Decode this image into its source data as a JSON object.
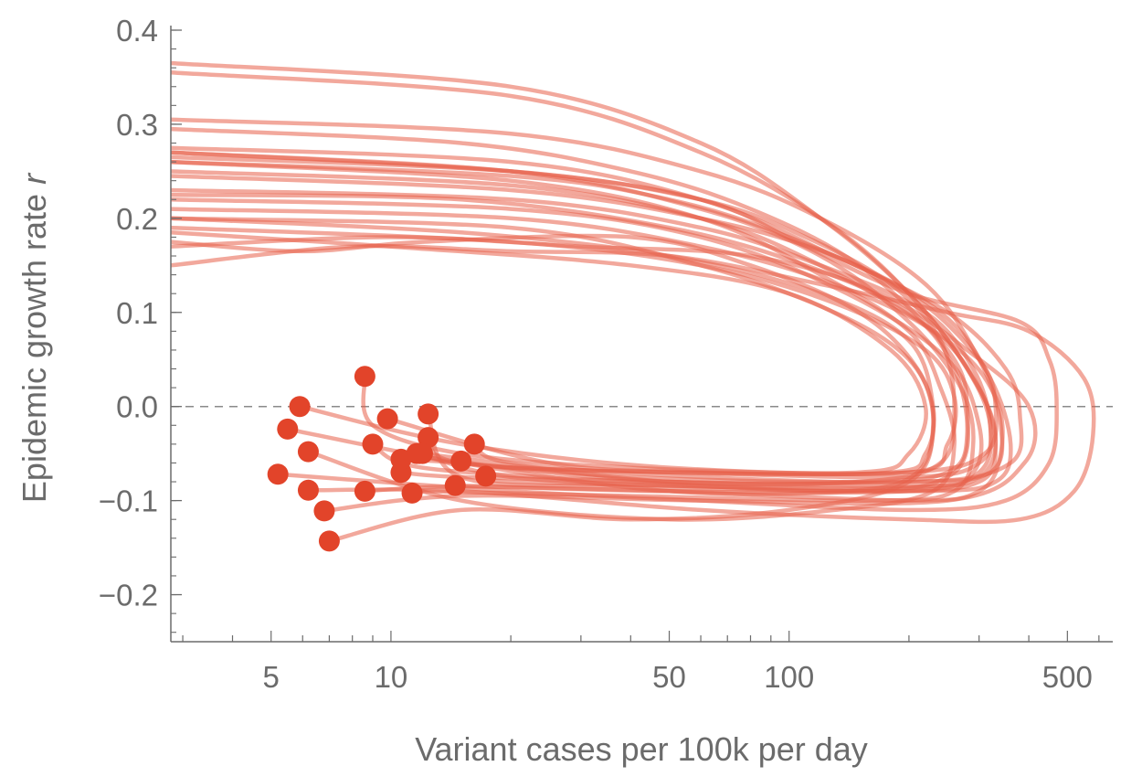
{
  "chart_data": {
    "type": "line",
    "xlabel": "Variant cases per 100k per day",
    "ylabel": "Epidemic growth rate",
    "ylabel_variable": "r",
    "x_scale": "log",
    "xlim": [
      2.8,
      650
    ],
    "ylim": [
      -0.25,
      0.4
    ],
    "x_ticks": [
      5,
      10,
      50,
      100,
      500
    ],
    "y_ticks": [
      -0.2,
      -0.1,
      0.0,
      0.1,
      0.2,
      0.3,
      0.4
    ],
    "reference_line": {
      "y": 0.0,
      "style": "dashed"
    },
    "grid": false,
    "legend": "none",
    "colors": {
      "trajectory": "#e8604a",
      "endpoint": "#e2442a",
      "axis": "#6b6b6b",
      "reference": "#8a8a8a"
    },
    "series": [
      {
        "points": [
          [
            2.8,
            0.365
          ],
          [
            20,
            0.34
          ],
          [
            60,
            0.28
          ],
          [
            120,
            0.2
          ],
          [
            200,
            0.12
          ],
          [
            280,
            0.04
          ],
          [
            320,
            -0.02
          ],
          [
            300,
            -0.07
          ],
          [
            200,
            -0.09
          ],
          [
            50,
            -0.09
          ],
          [
            15,
            -0.085
          ],
          [
            8.6,
            -0.09
          ]
        ]
      },
      {
        "points": [
          [
            2.8,
            0.355
          ],
          [
            20,
            0.33
          ],
          [
            60,
            0.27
          ],
          [
            130,
            0.19
          ],
          [
            210,
            0.11
          ],
          [
            290,
            0.03
          ],
          [
            330,
            -0.03
          ],
          [
            300,
            -0.075
          ],
          [
            200,
            -0.085
          ],
          [
            50,
            -0.08
          ],
          [
            15,
            -0.075
          ],
          [
            10.6,
            -0.07
          ]
        ]
      },
      {
        "points": [
          [
            2.8,
            0.305
          ],
          [
            20,
            0.29
          ],
          [
            60,
            0.25
          ],
          [
            120,
            0.2
          ],
          [
            220,
            0.13
          ],
          [
            300,
            0.05
          ],
          [
            340,
            -0.02
          ],
          [
            320,
            -0.07
          ],
          [
            200,
            -0.08
          ],
          [
            50,
            -0.08
          ],
          [
            15,
            -0.06
          ],
          [
            11.6,
            -0.05
          ]
        ]
      },
      {
        "points": [
          [
            2.8,
            0.295
          ],
          [
            15,
            0.28
          ],
          [
            40,
            0.25
          ],
          [
            80,
            0.21
          ],
          [
            150,
            0.15
          ],
          [
            250,
            0.06
          ],
          [
            280,
            0.0
          ],
          [
            260,
            -0.07
          ],
          [
            150,
            -0.09
          ],
          [
            40,
            -0.08
          ],
          [
            12,
            -0.065
          ],
          [
            9.0,
            -0.04
          ]
        ]
      },
      {
        "points": [
          [
            2.8,
            0.275
          ],
          [
            20,
            0.26
          ],
          [
            60,
            0.22
          ],
          [
            130,
            0.16
          ],
          [
            250,
            0.1
          ],
          [
            350,
            0.04
          ],
          [
            380,
            -0.01
          ],
          [
            360,
            -0.06
          ],
          [
            220,
            -0.08
          ],
          [
            60,
            -0.075
          ],
          [
            20,
            -0.06
          ],
          [
            16.2,
            -0.04
          ]
        ]
      },
      {
        "points": [
          [
            2.8,
            0.27
          ],
          [
            20,
            0.25
          ],
          [
            60,
            0.21
          ],
          [
            120,
            0.16
          ],
          [
            200,
            0.09
          ],
          [
            270,
            0.02
          ],
          [
            290,
            -0.04
          ],
          [
            260,
            -0.09
          ],
          [
            160,
            -0.1
          ],
          [
            40,
            -0.095
          ],
          [
            12,
            -0.09
          ],
          [
            11.3,
            -0.092
          ]
        ]
      },
      {
        "points": [
          [
            2.8,
            0.26
          ],
          [
            20,
            0.245
          ],
          [
            50,
            0.22
          ],
          [
            100,
            0.18
          ],
          [
            200,
            0.12
          ],
          [
            300,
            0.05
          ],
          [
            330,
            0.0
          ],
          [
            310,
            -0.05
          ],
          [
            200,
            -0.07
          ],
          [
            50,
            -0.07
          ],
          [
            15,
            -0.06
          ],
          [
            12.4,
            -0.033
          ]
        ]
      },
      {
        "points": [
          [
            2.8,
            0.25
          ],
          [
            20,
            0.235
          ],
          [
            60,
            0.2
          ],
          [
            120,
            0.15
          ],
          [
            250,
            0.07
          ],
          [
            330,
            0.01
          ],
          [
            340,
            -0.05
          ],
          [
            300,
            -0.09
          ],
          [
            200,
            -0.1
          ],
          [
            50,
            -0.09
          ],
          [
            18,
            -0.085
          ],
          [
            14.5,
            -0.084
          ]
        ]
      },
      {
        "points": [
          [
            2.8,
            0.245
          ],
          [
            20,
            0.23
          ],
          [
            60,
            0.2
          ],
          [
            130,
            0.16
          ],
          [
            240,
            0.1
          ],
          [
            320,
            0.03
          ],
          [
            360,
            -0.04
          ],
          [
            330,
            -0.08
          ],
          [
            220,
            -0.09
          ],
          [
            60,
            -0.085
          ],
          [
            20,
            -0.08
          ],
          [
            17.3,
            -0.074
          ]
        ]
      },
      {
        "points": [
          [
            2.8,
            0.23
          ],
          [
            20,
            0.22
          ],
          [
            60,
            0.19
          ],
          [
            120,
            0.15
          ],
          [
            220,
            0.1
          ],
          [
            290,
            0.04
          ],
          [
            320,
            -0.02
          ],
          [
            300,
            -0.06
          ],
          [
            200,
            -0.075
          ],
          [
            50,
            -0.07
          ],
          [
            20,
            -0.065
          ],
          [
            15.0,
            -0.058
          ]
        ]
      },
      {
        "points": [
          [
            2.8,
            0.225
          ],
          [
            15,
            0.22
          ],
          [
            50,
            0.19
          ],
          [
            110,
            0.15
          ],
          [
            200,
            0.1
          ],
          [
            260,
            0.04
          ],
          [
            280,
            -0.03
          ],
          [
            250,
            -0.07
          ],
          [
            150,
            -0.08
          ],
          [
            40,
            -0.075
          ],
          [
            15,
            -0.06
          ],
          [
            10.6,
            -0.056
          ]
        ]
      },
      {
        "points": [
          [
            2.8,
            0.22
          ],
          [
            20,
            0.21
          ],
          [
            60,
            0.18
          ],
          [
            140,
            0.12
          ],
          [
            250,
            0.05
          ],
          [
            300,
            -0.02
          ],
          [
            290,
            -0.07
          ],
          [
            220,
            -0.085
          ],
          [
            60,
            -0.085
          ],
          [
            20,
            -0.075
          ],
          [
            11.8,
            -0.05
          ]
        ]
      },
      {
        "points": [
          [
            2.8,
            0.21
          ],
          [
            20,
            0.2
          ],
          [
            60,
            0.17
          ],
          [
            130,
            0.13
          ],
          [
            230,
            0.08
          ],
          [
            300,
            0.02
          ],
          [
            330,
            -0.04
          ],
          [
            300,
            -0.08
          ],
          [
            180,
            -0.09
          ],
          [
            40,
            -0.085
          ],
          [
            15,
            -0.075
          ],
          [
            12.4,
            -0.008
          ]
        ]
      },
      {
        "points": [
          [
            2.8,
            0.2
          ],
          [
            15,
            0.185
          ],
          [
            50,
            0.16
          ],
          [
            120,
            0.12
          ],
          [
            200,
            0.07
          ],
          [
            230,
            0.0
          ],
          [
            220,
            -0.05
          ],
          [
            180,
            -0.07
          ],
          [
            60,
            -0.07
          ],
          [
            25,
            -0.06
          ],
          [
            9.8,
            -0.013
          ]
        ]
      },
      {
        "points": [
          [
            2.8,
            0.175
          ],
          [
            6,
            0.165
          ],
          [
            12,
            0.175
          ],
          [
            40,
            0.18
          ],
          [
            80,
            0.15
          ],
          [
            150,
            0.1
          ],
          [
            210,
            0.04
          ],
          [
            230,
            -0.02
          ],
          [
            200,
            -0.08
          ],
          [
            100,
            -0.11
          ],
          [
            40,
            -0.12
          ],
          [
            15,
            -0.11
          ],
          [
            7.0,
            -0.143
          ]
        ]
      },
      {
        "points": [
          [
            2.8,
            0.17
          ],
          [
            10,
            0.18
          ],
          [
            30,
            0.17
          ],
          [
            80,
            0.16
          ],
          [
            170,
            0.12
          ],
          [
            280,
            0.06
          ],
          [
            400,
            0.0
          ],
          [
            390,
            -0.06
          ],
          [
            250,
            -0.1
          ],
          [
            60,
            -0.1
          ],
          [
            15,
            -0.095
          ],
          [
            6.8,
            -0.111
          ]
        ]
      },
      {
        "points": [
          [
            2.8,
            0.15
          ],
          [
            8,
            0.17
          ],
          [
            20,
            0.165
          ],
          [
            50,
            0.16
          ],
          [
            120,
            0.13
          ],
          [
            250,
            0.1
          ],
          [
            400,
            0.08
          ],
          [
            550,
            0.03
          ],
          [
            580,
            -0.03
          ],
          [
            520,
            -0.09
          ],
          [
            380,
            -0.12
          ],
          [
            200,
            -0.12
          ],
          [
            60,
            -0.11
          ],
          [
            15,
            -0.09
          ],
          [
            6.2,
            -0.089
          ]
        ]
      },
      {
        "points": [
          [
            2.8,
            0.27
          ],
          [
            20,
            0.25
          ],
          [
            60,
            0.22
          ],
          [
            110,
            0.17
          ],
          [
            200,
            0.12
          ],
          [
            380,
            0.09
          ],
          [
            450,
            0.05
          ],
          [
            470,
            0.0
          ],
          [
            450,
            -0.06
          ],
          [
            350,
            -0.1
          ],
          [
            200,
            -0.11
          ],
          [
            60,
            -0.1
          ],
          [
            20,
            -0.09
          ],
          [
            5.2,
            -0.072
          ]
        ]
      },
      {
        "points": [
          [
            2.8,
            0.26
          ],
          [
            20,
            0.24
          ],
          [
            60,
            0.2
          ],
          [
            120,
            0.14
          ],
          [
            200,
            0.08
          ],
          [
            240,
            0.02
          ],
          [
            260,
            -0.04
          ],
          [
            230,
            -0.09
          ],
          [
            130,
            -0.11
          ],
          [
            50,
            -0.12
          ],
          [
            15,
            -0.1
          ],
          [
            6.2,
            -0.048
          ]
        ]
      },
      {
        "points": [
          [
            2.8,
            0.2
          ],
          [
            20,
            0.19
          ],
          [
            60,
            0.15
          ],
          [
            130,
            0.1
          ],
          [
            200,
            0.05
          ],
          [
            230,
            -0.01
          ],
          [
            210,
            -0.07
          ],
          [
            140,
            -0.09
          ],
          [
            50,
            -0.09
          ],
          [
            15,
            -0.06
          ],
          [
            5.5,
            -0.024
          ]
        ]
      },
      {
        "points": [
          [
            2.8,
            0.19
          ],
          [
            20,
            0.175
          ],
          [
            60,
            0.15
          ],
          [
            130,
            0.11
          ],
          [
            220,
            0.06
          ],
          [
            260,
            0.01
          ],
          [
            250,
            -0.04
          ],
          [
            200,
            -0.07
          ],
          [
            50,
            -0.065
          ],
          [
            15,
            -0.04
          ],
          [
            5.9,
            0.0
          ]
        ]
      },
      {
        "points": [
          [
            2.8,
            0.185
          ],
          [
            10,
            0.17
          ],
          [
            40,
            0.15
          ],
          [
            100,
            0.12
          ],
          [
            180,
            0.06
          ],
          [
            220,
            0.0
          ],
          [
            200,
            -0.05
          ],
          [
            150,
            -0.07
          ],
          [
            40,
            -0.065
          ],
          [
            15,
            -0.05
          ],
          [
            9,
            -0.02
          ],
          [
            8.6,
            0.032
          ]
        ]
      },
      {
        "points": [
          [
            2.8,
            0.265
          ],
          [
            20,
            0.25
          ],
          [
            60,
            0.22
          ],
          [
            110,
            0.18
          ],
          [
            180,
            0.13
          ],
          [
            240,
            0.07
          ],
          [
            260,
            0.0
          ],
          [
            240,
            -0.06
          ],
          [
            150,
            -0.08
          ],
          [
            50,
            -0.08
          ],
          [
            15,
            -0.055
          ],
          [
            12.0,
            -0.05
          ]
        ]
      }
    ]
  }
}
